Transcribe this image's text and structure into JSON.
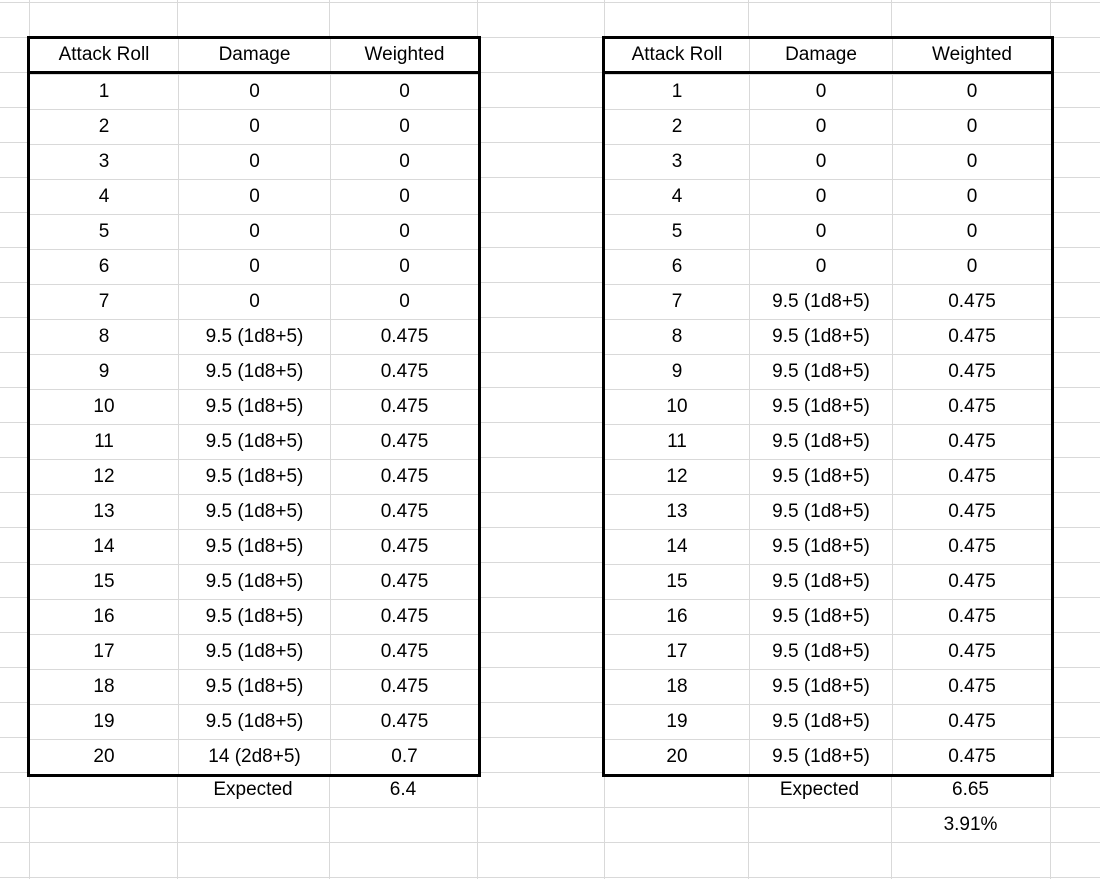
{
  "colors": {
    "background": "#ffffff",
    "gridline": "#d9d9d9",
    "table_border": "#000000",
    "text": "#000000"
  },
  "tables": [
    {
      "id": "left",
      "headers": [
        "Attack Roll",
        "Damage",
        "Weighted"
      ],
      "rows": [
        {
          "roll": "1",
          "damage": "0",
          "weighted": "0"
        },
        {
          "roll": "2",
          "damage": "0",
          "weighted": "0"
        },
        {
          "roll": "3",
          "damage": "0",
          "weighted": "0"
        },
        {
          "roll": "4",
          "damage": "0",
          "weighted": "0"
        },
        {
          "roll": "5",
          "damage": "0",
          "weighted": "0"
        },
        {
          "roll": "6",
          "damage": "0",
          "weighted": "0"
        },
        {
          "roll": "7",
          "damage": "0",
          "weighted": "0"
        },
        {
          "roll": "8",
          "damage": "9.5 (1d8+5)",
          "weighted": "0.475"
        },
        {
          "roll": "9",
          "damage": "9.5 (1d8+5)",
          "weighted": "0.475"
        },
        {
          "roll": "10",
          "damage": "9.5 (1d8+5)",
          "weighted": "0.475"
        },
        {
          "roll": "11",
          "damage": "9.5 (1d8+5)",
          "weighted": "0.475"
        },
        {
          "roll": "12",
          "damage": "9.5 (1d8+5)",
          "weighted": "0.475"
        },
        {
          "roll": "13",
          "damage": "9.5 (1d8+5)",
          "weighted": "0.475"
        },
        {
          "roll": "14",
          "damage": "9.5 (1d8+5)",
          "weighted": "0.475"
        },
        {
          "roll": "15",
          "damage": "9.5 (1d8+5)",
          "weighted": "0.475"
        },
        {
          "roll": "16",
          "damage": "9.5 (1d8+5)",
          "weighted": "0.475"
        },
        {
          "roll": "17",
          "damage": "9.5 (1d8+5)",
          "weighted": "0.475"
        },
        {
          "roll": "18",
          "damage": "9.5 (1d8+5)",
          "weighted": "0.475"
        },
        {
          "roll": "19",
          "damage": "9.5 (1d8+5)",
          "weighted": "0.475"
        },
        {
          "roll": "20",
          "damage": "14 (2d8+5)",
          "weighted": "0.7"
        }
      ],
      "expected_label": "Expected",
      "expected_value": "6.4"
    },
    {
      "id": "right",
      "headers": [
        "Attack Roll",
        "Damage",
        "Weighted"
      ],
      "rows": [
        {
          "roll": "1",
          "damage": "0",
          "weighted": "0"
        },
        {
          "roll": "2",
          "damage": "0",
          "weighted": "0"
        },
        {
          "roll": "3",
          "damage": "0",
          "weighted": "0"
        },
        {
          "roll": "4",
          "damage": "0",
          "weighted": "0"
        },
        {
          "roll": "5",
          "damage": "0",
          "weighted": "0"
        },
        {
          "roll": "6",
          "damage": "0",
          "weighted": "0"
        },
        {
          "roll": "7",
          "damage": "9.5 (1d8+5)",
          "weighted": "0.475"
        },
        {
          "roll": "8",
          "damage": "9.5 (1d8+5)",
          "weighted": "0.475"
        },
        {
          "roll": "9",
          "damage": "9.5 (1d8+5)",
          "weighted": "0.475"
        },
        {
          "roll": "10",
          "damage": "9.5 (1d8+5)",
          "weighted": "0.475"
        },
        {
          "roll": "11",
          "damage": "9.5 (1d8+5)",
          "weighted": "0.475"
        },
        {
          "roll": "12",
          "damage": "9.5 (1d8+5)",
          "weighted": "0.475"
        },
        {
          "roll": "13",
          "damage": "9.5 (1d8+5)",
          "weighted": "0.475"
        },
        {
          "roll": "14",
          "damage": "9.5 (1d8+5)",
          "weighted": "0.475"
        },
        {
          "roll": "15",
          "damage": "9.5 (1d8+5)",
          "weighted": "0.475"
        },
        {
          "roll": "16",
          "damage": "9.5 (1d8+5)",
          "weighted": "0.475"
        },
        {
          "roll": "17",
          "damage": "9.5 (1d8+5)",
          "weighted": "0.475"
        },
        {
          "roll": "18",
          "damage": "9.5 (1d8+5)",
          "weighted": "0.475"
        },
        {
          "roll": "19",
          "damage": "9.5 (1d8+5)",
          "weighted": "0.475"
        },
        {
          "roll": "20",
          "damage": "9.5 (1d8+5)",
          "weighted": "0.475"
        }
      ],
      "expected_label": "Expected",
      "expected_value": "6.65",
      "percent_value": "3.91%"
    }
  ]
}
